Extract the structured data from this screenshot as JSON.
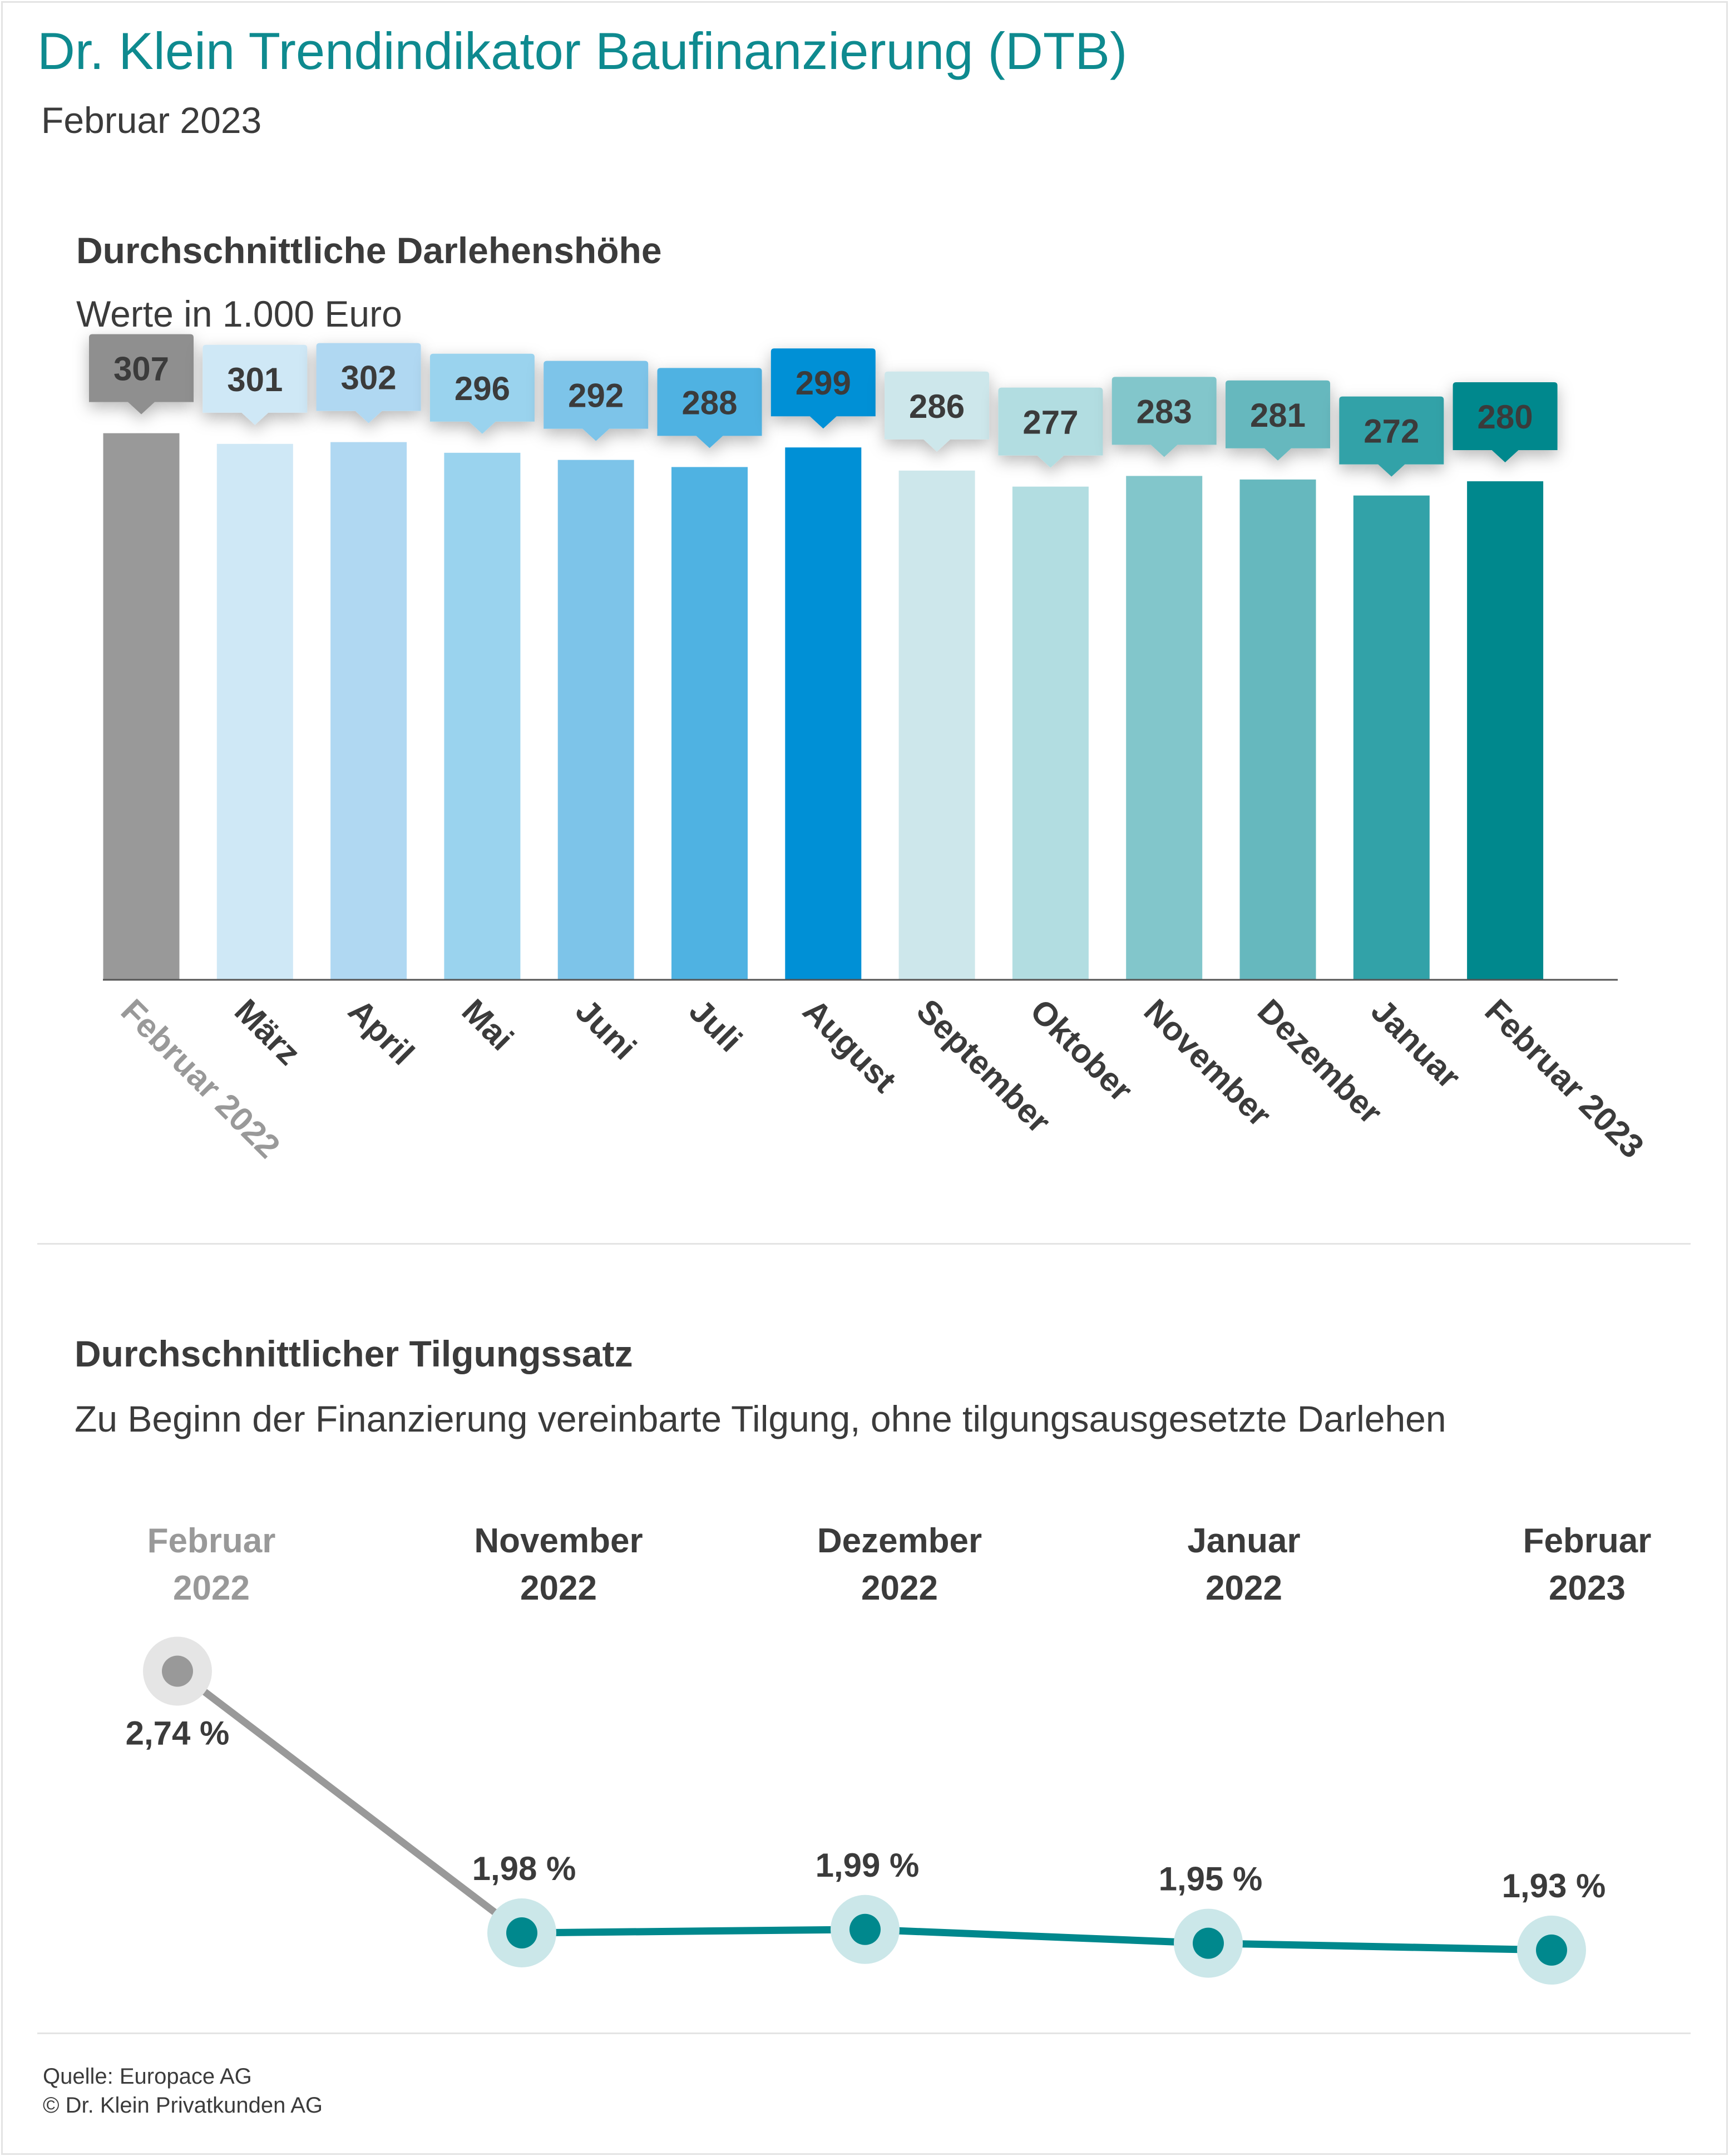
{
  "header": {
    "title": "Dr. Klein Trendindikator Baufinanzierung (DTB)",
    "subtitle": "Februar 2023"
  },
  "bar_section": {
    "title": "Durchschnittliche Darlehenshöhe",
    "subtitle": "Werte in 1.000 Euro"
  },
  "line_section": {
    "title": "Durchschnittlicher Tilgungssatz",
    "subtitle": "Zu Beginn der Finanzierung vereinbarte Tilgung, ohne tilgungsausgesetzte Darlehen"
  },
  "footer": {
    "source": "Quelle: Europace AG",
    "copyright": "© Dr. Klein Privatkunden AG"
  },
  "chart_data": [
    {
      "type": "bar",
      "title": "Durchschnittliche Darlehenshöhe",
      "subtitle": "Werte in 1.000 Euro",
      "categories": [
        "Februar 2022",
        "März",
        "April",
        "Mai",
        "Juni",
        "Juli",
        "August",
        "September",
        "Oktober",
        "November",
        "Dezember",
        "Januar",
        "Februar 2023"
      ],
      "values": [
        307,
        301,
        302,
        296,
        292,
        288,
        299,
        286,
        277,
        283,
        281,
        272,
        280
      ],
      "value_labels": [
        "307",
        "301",
        "302",
        "296",
        "292",
        "288",
        "299",
        "286",
        "277",
        "283",
        "281",
        "272",
        "280"
      ],
      "bar_colors": [
        "#999999",
        "#cfe8f6",
        "#b0d8f2",
        "#9ad3ee",
        "#7dc4e9",
        "#4fb2e2",
        "#0090d6",
        "#cde7eb",
        "#b2dde1",
        "#82c6cb",
        "#66b8be",
        "#32a2a8",
        "#00888d"
      ],
      "label_text_colors": [
        "#3b3b3b",
        "#3b3b3b",
        "#3b3b3b",
        "#3b3b3b",
        "#3b3b3b",
        "#3b3b3b",
        "#3b3b3b",
        "#3b3b3b",
        "#3b3b3b",
        "#3b3b3b",
        "#3b3b3b",
        "#3b3b3b",
        "#3b3b3b"
      ],
      "tick_label_colors": [
        "#999999",
        "#3b3b3b",
        "#3b3b3b",
        "#3b3b3b",
        "#3b3b3b",
        "#3b3b3b",
        "#3b3b3b",
        "#3b3b3b",
        "#3b3b3b",
        "#3b3b3b",
        "#3b3b3b",
        "#3b3b3b",
        "#3b3b3b"
      ],
      "ylim": [
        0,
        314
      ],
      "grid": false,
      "legend": "none"
    },
    {
      "type": "line",
      "title": "Durchschnittlicher Tilgungssatz",
      "subtitle": "Zu Beginn der Finanzierung vereinbarte Tilgung, ohne tilgungsausgesetzte Darlehen",
      "categories": [
        {
          "line1": "Februar",
          "line2": "2022",
          "color": "#999999"
        },
        {
          "line1": "November",
          "line2": "2022",
          "color": "#3b3b3b"
        },
        {
          "line1": "Dezember",
          "line2": "2022",
          "color": "#3b3b3b"
        },
        {
          "line1": "Januar",
          "line2": "2022",
          "color": "#3b3b3b"
        },
        {
          "line1": "Februar",
          "line2": "2023",
          "color": "#3b3b3b"
        }
      ],
      "values": [
        2.74,
        1.98,
        1.99,
        1.95,
        1.93
      ],
      "value_labels": [
        "2,74 %",
        "1,98 %",
        "1,99 %",
        "1,95 %",
        "1,93 %"
      ],
      "series_colors": {
        "past": "#999999",
        "current": "#00888d"
      },
      "grid": false,
      "legend": "none"
    }
  ]
}
